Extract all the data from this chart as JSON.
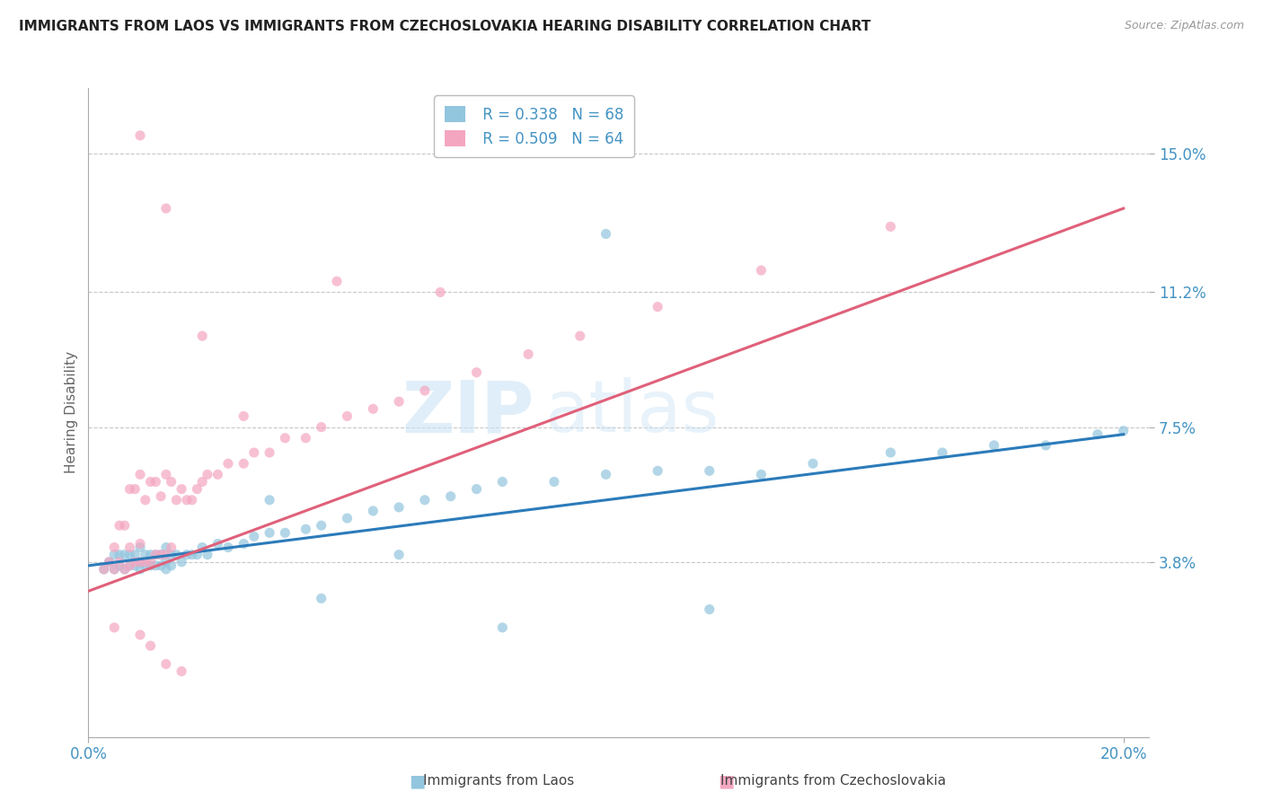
{
  "title": "IMMIGRANTS FROM LAOS VS IMMIGRANTS FROM CZECHOSLOVAKIA HEARING DISABILITY CORRELATION CHART",
  "source": "Source: ZipAtlas.com",
  "ylabel": "Hearing Disability",
  "legend_label_blue": "Immigrants from Laos",
  "legend_label_pink": "Immigrants from Czechoslovakia",
  "R_blue": 0.338,
  "N_blue": 68,
  "R_pink": 0.509,
  "N_pink": 64,
  "color_blue": "#92c5de",
  "color_pink": "#f4a6c0",
  "line_color_blue": "#2b7bba",
  "line_color_pink": "#e0607a",
  "axis_label_color": "#4393c3",
  "title_color": "#222222",
  "background_color": "#ffffff",
  "grid_color": "#c8c8c8",
  "xlim": [
    0.0,
    0.205
  ],
  "ylim": [
    -0.01,
    0.168
  ],
  "ytick_vals": [
    0.038,
    0.075,
    0.112,
    0.15
  ],
  "ytick_labels": [
    "3.8%",
    "7.5%",
    "11.2%",
    "15.0%"
  ],
  "xtick_vals": [
    0.0,
    0.2
  ],
  "xtick_labels": [
    "0.0%",
    "20.0%"
  ],
  "watermark_zip": "ZIP",
  "watermark_atlas": "atlas",
  "blue_line_x0": 0.0,
  "blue_line_y0": 0.037,
  "blue_line_x1": 0.2,
  "blue_line_y1": 0.073,
  "pink_line_x0": 0.0,
  "pink_line_y0": 0.03,
  "pink_line_x1": 0.2,
  "pink_line_y1": 0.135,
  "blue_x": [
    0.003,
    0.004,
    0.005,
    0.005,
    0.006,
    0.006,
    0.007,
    0.007,
    0.008,
    0.008,
    0.009,
    0.009,
    0.01,
    0.01,
    0.01,
    0.011,
    0.011,
    0.012,
    0.012,
    0.013,
    0.013,
    0.014,
    0.014,
    0.015,
    0.015,
    0.015,
    0.016,
    0.016,
    0.017,
    0.018,
    0.019,
    0.02,
    0.021,
    0.022,
    0.023,
    0.025,
    0.027,
    0.03,
    0.032,
    0.035,
    0.038,
    0.042,
    0.045,
    0.05,
    0.055,
    0.06,
    0.065,
    0.07,
    0.075,
    0.08,
    0.09,
    0.1,
    0.11,
    0.12,
    0.13,
    0.14,
    0.155,
    0.165,
    0.175,
    0.185,
    0.195,
    0.2,
    0.08,
    0.12,
    0.035,
    0.045,
    0.06,
    0.1
  ],
  "blue_y": [
    0.036,
    0.038,
    0.036,
    0.04,
    0.037,
    0.04,
    0.036,
    0.04,
    0.037,
    0.04,
    0.037,
    0.04,
    0.036,
    0.038,
    0.042,
    0.037,
    0.04,
    0.037,
    0.04,
    0.037,
    0.04,
    0.037,
    0.04,
    0.036,
    0.038,
    0.042,
    0.037,
    0.04,
    0.04,
    0.038,
    0.04,
    0.04,
    0.04,
    0.042,
    0.04,
    0.043,
    0.042,
    0.043,
    0.045,
    0.046,
    0.046,
    0.047,
    0.048,
    0.05,
    0.052,
    0.053,
    0.055,
    0.056,
    0.058,
    0.06,
    0.06,
    0.062,
    0.063,
    0.063,
    0.062,
    0.065,
    0.068,
    0.068,
    0.07,
    0.07,
    0.073,
    0.074,
    0.02,
    0.025,
    0.055,
    0.028,
    0.04,
    0.128
  ],
  "pink_x": [
    0.003,
    0.004,
    0.005,
    0.005,
    0.006,
    0.006,
    0.007,
    0.007,
    0.008,
    0.008,
    0.008,
    0.009,
    0.009,
    0.01,
    0.01,
    0.01,
    0.011,
    0.011,
    0.012,
    0.012,
    0.013,
    0.013,
    0.014,
    0.014,
    0.015,
    0.015,
    0.016,
    0.016,
    0.017,
    0.018,
    0.019,
    0.02,
    0.021,
    0.022,
    0.023,
    0.025,
    0.027,
    0.03,
    0.032,
    0.035,
    0.038,
    0.042,
    0.045,
    0.05,
    0.055,
    0.06,
    0.065,
    0.075,
    0.085,
    0.095,
    0.11,
    0.13,
    0.155,
    0.005,
    0.01,
    0.012,
    0.015,
    0.018,
    0.01,
    0.015,
    0.022,
    0.03,
    0.048,
    0.068
  ],
  "pink_y": [
    0.036,
    0.038,
    0.036,
    0.042,
    0.038,
    0.048,
    0.036,
    0.048,
    0.037,
    0.042,
    0.058,
    0.038,
    0.058,
    0.038,
    0.043,
    0.062,
    0.038,
    0.055,
    0.038,
    0.06,
    0.04,
    0.06,
    0.04,
    0.056,
    0.04,
    0.062,
    0.042,
    0.06,
    0.055,
    0.058,
    0.055,
    0.055,
    0.058,
    0.06,
    0.062,
    0.062,
    0.065,
    0.065,
    0.068,
    0.068,
    0.072,
    0.072,
    0.075,
    0.078,
    0.08,
    0.082,
    0.085,
    0.09,
    0.095,
    0.1,
    0.108,
    0.118,
    0.13,
    0.02,
    0.018,
    0.015,
    0.01,
    0.008,
    0.155,
    0.135,
    0.1,
    0.078,
    0.115,
    0.112
  ]
}
